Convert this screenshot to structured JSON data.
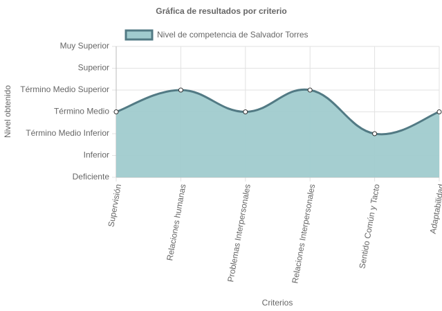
{
  "chart_data": {
    "type": "line",
    "title": "Gráfica de resultados por criterio",
    "x_label": "Criterios",
    "y_label": "Nivel obtenido",
    "categories": [
      "Supervisión",
      "Relaciones humanas",
      "Problemas Interpersonales",
      "Relaciones Interpersonales",
      "Sentido Común y Tacto",
      "Adaptabilidad"
    ],
    "series": [
      {
        "name": "Nivel de competencia de Salvador Torres",
        "color": "#527a84",
        "fill": "#a0cbce",
        "values": [
          3,
          4,
          3,
          4,
          2,
          3
        ]
      }
    ],
    "ylim": [
      0,
      6
    ],
    "yticks": [
      {
        "value": 0,
        "label": "Deficiente"
      },
      {
        "value": 1,
        "label": "Inferior"
      },
      {
        "value": 2,
        "label": "Término Medio Inferior"
      },
      {
        "value": 3,
        "label": "Término Medio"
      },
      {
        "value": 4,
        "label": "Término Medio Superior"
      },
      {
        "value": 5,
        "label": "Superior"
      },
      {
        "value": 6,
        "label": "Muy Superior"
      }
    ],
    "grid": true
  }
}
